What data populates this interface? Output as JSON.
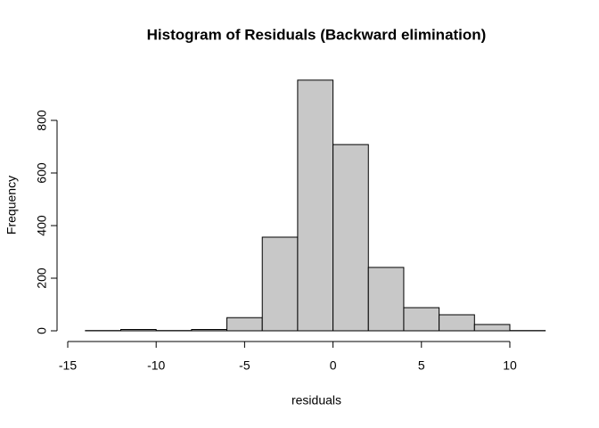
{
  "chart_data": {
    "type": "histogram",
    "title": "Histogram of Residuals (Backward elimination)",
    "x_label": "residuals",
    "y_label": "Frequency",
    "bins": [
      -14,
      -12,
      -10,
      -8,
      -6,
      -4,
      -2,
      0,
      2,
      4,
      6,
      8,
      10,
      12
    ],
    "counts": [
      1,
      5,
      1,
      5,
      50,
      356,
      953,
      708,
      241,
      88,
      61,
      24,
      1
    ],
    "color": "#c8c8c8",
    "xlim": [
      -15,
      13
    ],
    "xticks": [
      -15,
      -10,
      -5,
      0,
      5,
      10
    ],
    "ylim": [
      0,
      1000
    ],
    "yticks": [
      0,
      200,
      400,
      600,
      800
    ]
  }
}
